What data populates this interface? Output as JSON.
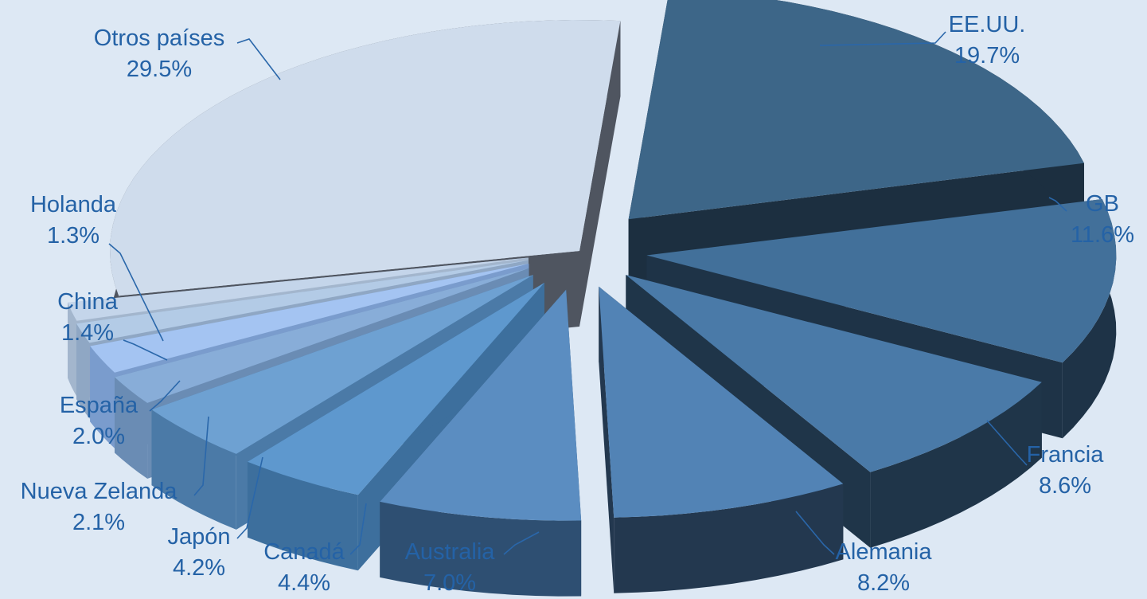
{
  "chart_data": {
    "type": "pie",
    "style": "3d-exploded",
    "title": "",
    "unit": "%",
    "slices": [
      {
        "label": "EE.UU.",
        "value": 19.7,
        "display": "19.7%",
        "color": "#3d6688",
        "side": "#1c2f40"
      },
      {
        "label": "GB",
        "value": 11.6,
        "display": "11.6%",
        "color": "#42709a",
        "side": "#1e3347"
      },
      {
        "label": "Francia",
        "value": 8.6,
        "display": "8.6%",
        "color": "#4a7aa8",
        "side": "#1f3549"
      },
      {
        "label": "Alemania",
        "value": 8.2,
        "display": "8.2%",
        "color": "#5283b5",
        "side": "#23384f"
      },
      {
        "label": "Australia",
        "value": 7.0,
        "display": "7.0%",
        "color": "#5b8dc1",
        "side": "#2e4f72"
      },
      {
        "label": "Canadá",
        "value": 4.4,
        "display": "4.4%",
        "color": "#5e98ce",
        "side": "#3d6f9d"
      },
      {
        "label": "Japón",
        "value": 4.2,
        "display": "4.2%",
        "color": "#6ea1d2",
        "side": "#4b7aa7"
      },
      {
        "label": "Nueva Zelanda",
        "value": 2.1,
        "display": "2.1%",
        "color": "#88add8",
        "side": "#6a8cb4"
      },
      {
        "label": "España",
        "value": 2.0,
        "display": "2.0%",
        "color": "#a4c4f2",
        "side": "#7a9ccd"
      },
      {
        "label": "China",
        "value": 1.4,
        "display": "1.4%",
        "color": "#b3cbe6",
        "side": "#8fa7c4"
      },
      {
        "label": "Holanda",
        "value": 1.3,
        "display": "1.3%",
        "color": "#c4d5ea",
        "side": "#a3b6cd"
      },
      {
        "label": "Otros países",
        "value": 29.5,
        "display": "29.5%",
        "color": "#cfdcec",
        "side": "#4f5560"
      }
    ]
  }
}
